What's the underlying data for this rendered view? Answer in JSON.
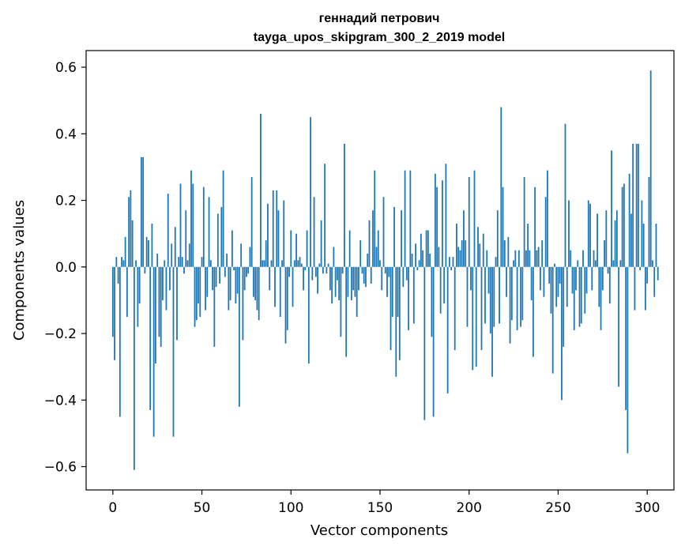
{
  "chart_data": {
    "type": "bar",
    "title_line1": "геннадий петрович",
    "title_line2": "tayga_upos_skipgram_300_2_2019 model",
    "xlabel": "Vector components",
    "ylabel": "Components values",
    "xlim": [
      -15,
      315
    ],
    "ylim": [
      -0.67,
      0.65
    ],
    "x_ticks": [
      0,
      50,
      100,
      150,
      200,
      250,
      300
    ],
    "x_tick_labels": [
      "0",
      "50",
      "100",
      "150",
      "200",
      "250",
      "300"
    ],
    "y_ticks": [
      -0.6,
      -0.4,
      -0.2,
      0.0,
      0.2,
      0.4,
      0.6
    ],
    "y_tick_labels": [
      "−0.6",
      "−0.4",
      "−0.2",
      "0.0",
      "0.2",
      "0.4",
      "0.6"
    ],
    "bar_color": "#1f77b4",
    "values": [
      -0.21,
      -0.28,
      0.03,
      -0.05,
      -0.45,
      0.03,
      0.02,
      0.09,
      -0.15,
      0.21,
      0.23,
      0.14,
      -0.61,
      0.02,
      -0.18,
      -0.11,
      0.33,
      0.33,
      -0.02,
      0.09,
      0.08,
      -0.43,
      0.13,
      -0.51,
      -0.29,
      0.04,
      -0.21,
      -0.24,
      -0.1,
      0.02,
      -0.13,
      0.22,
      -0.07,
      0.07,
      -0.51,
      0.12,
      -0.22,
      0.03,
      0.25,
      0.03,
      -0.02,
      0.17,
      0.02,
      0.07,
      0.29,
      0.25,
      -0.18,
      -0.16,
      -0.11,
      -0.15,
      0.03,
      0.24,
      -0.13,
      -0.09,
      0.21,
      0.02,
      -0.07,
      -0.24,
      -0.06,
      0.16,
      -0.05,
      0.18,
      0.29,
      -0.03,
      0.04,
      -0.13,
      -0.1,
      0.11,
      -0.01,
      -0.11,
      -0.08,
      -0.42,
      0.07,
      -0.22,
      -0.07,
      -0.03,
      -0.02,
      0.06,
      0.27,
      -0.09,
      -0.1,
      -0.13,
      -0.16,
      0.46,
      0.02,
      0.02,
      0.08,
      0.19,
      -0.07,
      0.02,
      0.23,
      -0.12,
      0.23,
      0.17,
      -0.15,
      0.02,
      0.2,
      -0.23,
      -0.19,
      -0.03,
      0.11,
      -0.12,
      0.02,
      0.1,
      0.02,
      0.03,
      0.01,
      -0.07,
      -0.01,
      0.11,
      -0.29,
      0.45,
      -0.04,
      0.21,
      -0.03,
      -0.08,
      0.01,
      0.14,
      -0.02,
      0.31,
      -0.02,
      0.01,
      -0.07,
      -0.11,
      0.06,
      -0.09,
      -0.04,
      -0.1,
      -0.21,
      -0.02,
      0.37,
      -0.27,
      -0.09,
      0.11,
      -0.1,
      -0.07,
      -0.09,
      -0.15,
      -0.07,
      0.08,
      -0.02,
      -0.05,
      -0.06,
      0.04,
      0.14,
      -0.05,
      0.17,
      0.29,
      0.06,
      0.11,
      0.02,
      -0.07,
      0.21,
      -0.02,
      -0.09,
      -0.03,
      -0.25,
      -0.15,
      0.18,
      -0.33,
      -0.15,
      -0.28,
      0.17,
      -0.06,
      0.29,
      -0.04,
      -0.19,
      0.29,
      0.04,
      -0.17,
      0.07,
      -0.01,
      0.02,
      0.1,
      0.05,
      -0.46,
      0.11,
      0.11,
      0.04,
      -0.21,
      -0.45,
      0.28,
      0.24,
      0.06,
      -0.14,
      0.26,
      -0.11,
      0.31,
      -0.38,
      0.03,
      -0.01,
      0.03,
      -0.25,
      0.13,
      0.06,
      0.05,
      0.08,
      0.17,
      0.08,
      -0.18,
      0.27,
      -0.07,
      -0.31,
      0.29,
      -0.3,
      0.12,
      0.07,
      -0.25,
      0.1,
      -0.17,
      0.05,
      -0.08,
      -0.2,
      -0.33,
      -0.18,
      0.03,
      0.17,
      -0.17,
      0.48,
      0.24,
      0.08,
      -0.09,
      0.09,
      -0.23,
      -0.16,
      0.02,
      0.05,
      -0.19,
      0.05,
      -0.18,
      -0.16,
      0.27,
      0.05,
      0.13,
      0.05,
      -0.1,
      -0.27,
      0.24,
      0.05,
      0.06,
      -0.07,
      0.08,
      -0.09,
      0.21,
      0.29,
      -0.05,
      -0.14,
      -0.32,
      0.01,
      -0.12,
      -0.09,
      -0.05,
      -0.4,
      -0.24,
      0.43,
      -0.12,
      0.2,
      0.05,
      -0.08,
      -0.19,
      -0.07,
      0.02,
      -0.18,
      -0.17,
      0.05,
      -0.14,
      -0.08,
      0.2,
      0.19,
      -0.07,
      0.05,
      0.02,
      0.16,
      -0.12,
      -0.19,
      -0.07,
      0.08,
      0.17,
      -0.02,
      -0.11,
      0.35,
      0.02,
      0.14,
      0.17,
      -0.36,
      0.02,
      0.24,
      0.25,
      -0.43,
      -0.56,
      0.28,
      0.16,
      0.37,
      -0.13,
      0.37,
      0.37,
      -0.01,
      0.2,
      0.13,
      -0.13,
      -0.05,
      0.27,
      0.59,
      0.02,
      -0.09,
      0.13,
      -0.04
    ]
  }
}
